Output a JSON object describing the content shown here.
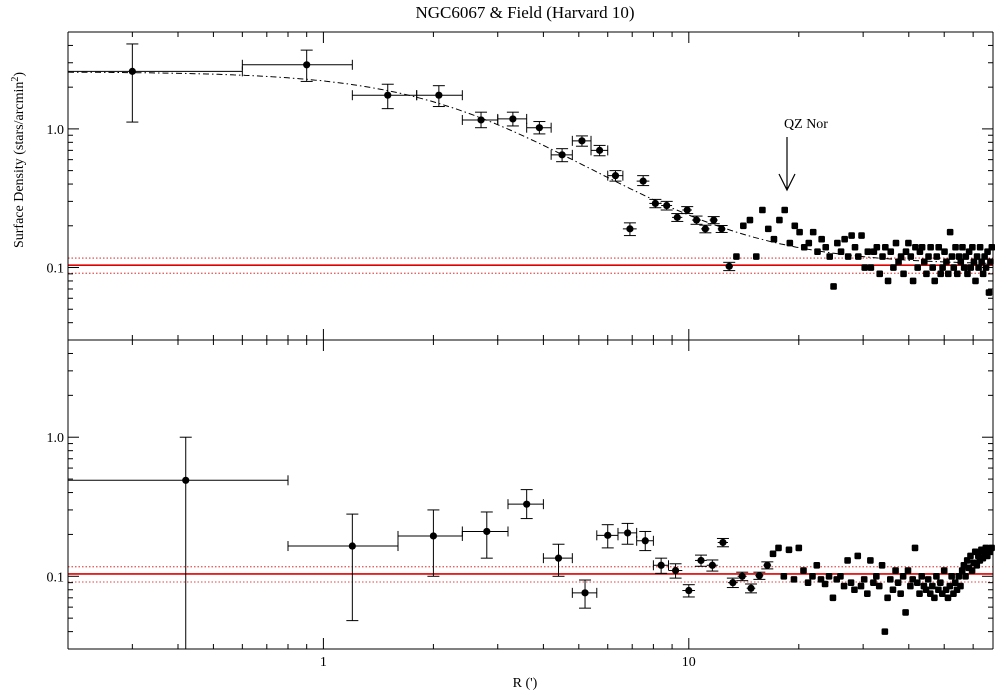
{
  "chart_data": [
    {
      "panel": "upper",
      "type": "scatter",
      "title": "NGC6067 & Field (Harvard 10)",
      "xlabel": "",
      "ylabel": "Surface Density (stars/arcmin",
      "ylabel_sup": "2",
      "ylabel_end": ")",
      "x_scale": "log",
      "y_scale": "log",
      "xlim": [
        0.2,
        68
      ],
      "ylim": [
        0.03,
        5
      ],
      "xticks": [
        {
          "v": 1,
          "label": "1"
        },
        {
          "v": 10,
          "label": "10"
        }
      ],
      "yticks": [
        {
          "v": 0.1,
          "label": "0.1"
        },
        {
          "v": 1.0,
          "label": "1.0"
        }
      ],
      "annotation": {
        "text": "QZ Nor",
        "x": 18,
        "y": 0.4
      },
      "colors": {
        "background_line": "#e00000",
        "points": "#000000"
      },
      "background": {
        "level": 0.104,
        "upper": 0.117,
        "lower": 0.091
      },
      "king_fit": {
        "f0": 2.48,
        "rc": 2.4,
        "fbg": 0.104,
        "style": "dash-dot"
      },
      "points": [
        {
          "x": 0.3,
          "y": 2.6,
          "xlo": 0.2,
          "xhi": 0.6,
          "ylo": 1.12,
          "yhi": 4.1
        },
        {
          "x": 0.9,
          "y": 2.9,
          "xlo": 0.6,
          "xhi": 1.2,
          "ylo": 2.2,
          "yhi": 3.7
        },
        {
          "x": 1.5,
          "y": 1.75,
          "xlo": 1.2,
          "xhi": 1.8,
          "ylo": 1.4,
          "yhi": 2.1
        },
        {
          "x": 2.07,
          "y": 1.75,
          "xlo": 1.8,
          "xhi": 2.4,
          "ylo": 1.45,
          "yhi": 2.05
        },
        {
          "x": 2.7,
          "y": 1.16,
          "xlo": 2.4,
          "xhi": 3.0,
          "ylo": 1.02,
          "yhi": 1.32
        },
        {
          "x": 3.3,
          "y": 1.18,
          "xlo": 3.0,
          "xhi": 3.6,
          "ylo": 1.05,
          "yhi": 1.32
        },
        {
          "x": 3.9,
          "y": 1.02,
          "xlo": 3.6,
          "xhi": 4.2,
          "ylo": 0.92,
          "yhi": 1.13
        },
        {
          "x": 4.5,
          "y": 0.65,
          "xlo": 4.2,
          "xhi": 4.8,
          "ylo": 0.58,
          "yhi": 0.72
        },
        {
          "x": 5.1,
          "y": 0.82,
          "xlo": 4.8,
          "xhi": 5.4,
          "ylo": 0.75,
          "yhi": 0.89
        },
        {
          "x": 5.7,
          "y": 0.7,
          "xlo": 5.4,
          "xhi": 6.0,
          "ylo": 0.64,
          "yhi": 0.76
        },
        {
          "x": 6.3,
          "y": 0.46,
          "xlo": 6.0,
          "xhi": 6.6,
          "ylo": 0.42,
          "yhi": 0.5
        },
        {
          "x": 6.9,
          "y": 0.19,
          "xlo": 6.6,
          "xhi": 7.2,
          "ylo": 0.17,
          "yhi": 0.21
        },
        {
          "x": 7.5,
          "y": 0.42,
          "xlo": 7.2,
          "xhi": 7.8,
          "ylo": 0.39,
          "yhi": 0.46
        },
        {
          "x": 8.1,
          "y": 0.29,
          "xlo": 7.8,
          "xhi": 8.4,
          "ylo": 0.27,
          "yhi": 0.31
        },
        {
          "x": 8.7,
          "y": 0.28,
          "xlo": 8.4,
          "xhi": 9.0,
          "ylo": 0.26,
          "yhi": 0.3
        },
        {
          "x": 9.3,
          "y": 0.23,
          "xlo": 9.0,
          "xhi": 9.6,
          "ylo": 0.215,
          "yhi": 0.245
        },
        {
          "x": 9.9,
          "y": 0.26,
          "xlo": 9.6,
          "xhi": 10.2,
          "ylo": 0.245,
          "yhi": 0.275
        },
        {
          "x": 10.5,
          "y": 0.22,
          "xlo": 10.2,
          "xhi": 10.8,
          "ylo": 0.205,
          "yhi": 0.235
        },
        {
          "x": 11.1,
          "y": 0.19,
          "xlo": 10.8,
          "xhi": 11.4,
          "ylo": 0.178,
          "yhi": 0.202
        },
        {
          "x": 11.7,
          "y": 0.22,
          "xlo": 11.4,
          "xhi": 12.0,
          "ylo": 0.207,
          "yhi": 0.233
        },
        {
          "x": 12.3,
          "y": 0.19,
          "xlo": 12.0,
          "xhi": 12.6,
          "ylo": 0.179,
          "yhi": 0.201
        },
        {
          "x": 12.9,
          "y": 0.102,
          "xlo": 12.6,
          "xhi": 13.2,
          "ylo": 0.095,
          "yhi": 0.109
        }
      ],
      "scatter_points": [
        {
          "x": 13.5,
          "y": 0.12
        },
        {
          "x": 14.1,
          "y": 0.2
        },
        {
          "x": 14.7,
          "y": 0.22
        },
        {
          "x": 15.3,
          "y": 0.12
        },
        {
          "x": 15.9,
          "y": 0.26
        },
        {
          "x": 16.5,
          "y": 0.19
        },
        {
          "x": 17.1,
          "y": 0.16
        },
        {
          "x": 17.7,
          "y": 0.22
        },
        {
          "x": 18.3,
          "y": 0.26
        },
        {
          "x": 18.9,
          "y": 0.15
        },
        {
          "x": 19.5,
          "y": 0.2
        },
        {
          "x": 20.1,
          "y": 0.18
        },
        {
          "x": 20.7,
          "y": 0.14
        },
        {
          "x": 21.3,
          "y": 0.15
        },
        {
          "x": 21.9,
          "y": 0.18
        },
        {
          "x": 22.5,
          "y": 0.13
        },
        {
          "x": 23.1,
          "y": 0.16
        },
        {
          "x": 23.7,
          "y": 0.14
        },
        {
          "x": 24.3,
          "y": 0.12
        },
        {
          "x": 24.9,
          "y": 0.073
        },
        {
          "x": 25.5,
          "y": 0.15
        },
        {
          "x": 26.1,
          "y": 0.13
        },
        {
          "x": 26.7,
          "y": 0.16
        },
        {
          "x": 27.3,
          "y": 0.12
        },
        {
          "x": 27.9,
          "y": 0.17
        },
        {
          "x": 28.5,
          "y": 0.14
        },
        {
          "x": 29.1,
          "y": 0.12
        },
        {
          "x": 29.7,
          "y": 0.17
        },
        {
          "x": 30.3,
          "y": 0.1
        },
        {
          "x": 30.9,
          "y": 0.13
        },
        {
          "x": 31.5,
          "y": 0.1
        },
        {
          "x": 32.1,
          "y": 0.13
        },
        {
          "x": 32.7,
          "y": 0.14
        },
        {
          "x": 33.3,
          "y": 0.09
        },
        {
          "x": 33.9,
          "y": 0.12
        },
        {
          "x": 34.5,
          "y": 0.14
        },
        {
          "x": 35.1,
          "y": 0.08
        },
        {
          "x": 35.7,
          "y": 0.13
        },
        {
          "x": 36.3,
          "y": 0.1
        },
        {
          "x": 36.9,
          "y": 0.15
        },
        {
          "x": 37.5,
          "y": 0.11
        },
        {
          "x": 38.1,
          "y": 0.12
        },
        {
          "x": 38.7,
          "y": 0.09
        },
        {
          "x": 39.3,
          "y": 0.13
        },
        {
          "x": 39.9,
          "y": 0.15
        },
        {
          "x": 40.5,
          "y": 0.12
        },
        {
          "x": 41.1,
          "y": 0.08
        },
        {
          "x": 41.7,
          "y": 0.14
        },
        {
          "x": 42.3,
          "y": 0.1
        },
        {
          "x": 42.9,
          "y": 0.13
        },
        {
          "x": 43.5,
          "y": 0.14
        },
        {
          "x": 44.1,
          "y": 0.11
        },
        {
          "x": 44.7,
          "y": 0.09
        },
        {
          "x": 45.3,
          "y": 0.12
        },
        {
          "x": 45.9,
          "y": 0.14
        },
        {
          "x": 46.5,
          "y": 0.1
        },
        {
          "x": 47.1,
          "y": 0.08
        },
        {
          "x": 47.7,
          "y": 0.12
        },
        {
          "x": 48.3,
          "y": 0.14
        },
        {
          "x": 48.9,
          "y": 0.09
        },
        {
          "x": 49.5,
          "y": 0.1
        },
        {
          "x": 50.1,
          "y": 0.13
        },
        {
          "x": 50.7,
          "y": 0.11
        },
        {
          "x": 51.3,
          "y": 0.09
        },
        {
          "x": 51.9,
          "y": 0.18
        },
        {
          "x": 52.5,
          "y": 0.12
        },
        {
          "x": 53.1,
          "y": 0.1
        },
        {
          "x": 53.7,
          "y": 0.14
        },
        {
          "x": 54.3,
          "y": 0.09
        },
        {
          "x": 54.9,
          "y": 0.12
        },
        {
          "x": 55.5,
          "y": 0.11
        },
        {
          "x": 56.1,
          "y": 0.14
        },
        {
          "x": 56.7,
          "y": 0.1
        },
        {
          "x": 57.3,
          "y": 0.12
        },
        {
          "x": 57.9,
          "y": 0.09
        },
        {
          "x": 58.5,
          "y": 0.13
        },
        {
          "x": 59.1,
          "y": 0.1
        },
        {
          "x": 59.7,
          "y": 0.14
        },
        {
          "x": 60.3,
          "y": 0.11
        },
        {
          "x": 60.9,
          "y": 0.08
        },
        {
          "x": 61.5,
          "y": 0.12
        },
        {
          "x": 62.1,
          "y": 0.1
        },
        {
          "x": 62.7,
          "y": 0.14
        },
        {
          "x": 63.3,
          "y": 0.11
        },
        {
          "x": 63.9,
          "y": 0.09
        },
        {
          "x": 64.5,
          "y": 0.12
        },
        {
          "x": 65.1,
          "y": 0.1
        },
        {
          "x": 65.7,
          "y": 0.13
        },
        {
          "x": 66.3,
          "y": 0.066
        },
        {
          "x": 66.9,
          "y": 0.11
        },
        {
          "x": 67.5,
          "y": 0.14
        }
      ]
    },
    {
      "panel": "lower",
      "type": "scatter",
      "title": "",
      "xlabel": "R (')",
      "ylabel": "",
      "x_scale": "log",
      "y_scale": "log",
      "xlim": [
        0.2,
        68
      ],
      "ylim": [
        0.03,
        5
      ],
      "xticks": [
        {
          "v": 1,
          "label": "1"
        },
        {
          "v": 10,
          "label": "10"
        }
      ],
      "yticks": [
        {
          "v": 0.1,
          "label": "0.1"
        },
        {
          "v": 1.0,
          "label": "1.0"
        }
      ],
      "colors": {
        "background_line": "#e00000",
        "points": "#000000"
      },
      "background": {
        "level": 0.104,
        "upper": 0.117,
        "lower": 0.091
      },
      "points": [
        {
          "x": 0.42,
          "y": 0.49,
          "xlo": 0.2,
          "xhi": 0.8,
          "ylo": 0.03,
          "yhi": 1.0
        },
        {
          "x": 1.2,
          "y": 0.165,
          "xlo": 0.8,
          "xhi": 1.6,
          "ylo": 0.048,
          "yhi": 0.28
        },
        {
          "x": 2.0,
          "y": 0.195,
          "xlo": 1.6,
          "xhi": 2.4,
          "ylo": 0.1,
          "yhi": 0.3
        },
        {
          "x": 2.8,
          "y": 0.21,
          "xlo": 2.4,
          "xhi": 3.2,
          "ylo": 0.135,
          "yhi": 0.29
        },
        {
          "x": 3.6,
          "y": 0.33,
          "xlo": 3.2,
          "xhi": 4.0,
          "ylo": 0.26,
          "yhi": 0.42
        },
        {
          "x": 4.4,
          "y": 0.135,
          "xlo": 4.0,
          "xhi": 4.8,
          "ylo": 0.1,
          "yhi": 0.17
        },
        {
          "x": 5.2,
          "y": 0.076,
          "xlo": 4.8,
          "xhi": 5.6,
          "ylo": 0.059,
          "yhi": 0.094
        },
        {
          "x": 6.0,
          "y": 0.197,
          "xlo": 5.6,
          "xhi": 6.4,
          "ylo": 0.16,
          "yhi": 0.235
        },
        {
          "x": 6.8,
          "y": 0.205,
          "xlo": 6.4,
          "xhi": 7.2,
          "ylo": 0.17,
          "yhi": 0.24
        },
        {
          "x": 7.6,
          "y": 0.18,
          "xlo": 7.2,
          "xhi": 8.0,
          "ylo": 0.153,
          "yhi": 0.21
        },
        {
          "x": 8.4,
          "y": 0.12,
          "xlo": 8.0,
          "xhi": 8.8,
          "ylo": 0.105,
          "yhi": 0.135
        },
        {
          "x": 9.2,
          "y": 0.11,
          "xlo": 8.8,
          "xhi": 9.6,
          "ylo": 0.097,
          "yhi": 0.123
        },
        {
          "x": 10.0,
          "y": 0.079,
          "xlo": 9.6,
          "xhi": 10.4,
          "ylo": 0.071,
          "yhi": 0.087
        },
        {
          "x": 10.8,
          "y": 0.13,
          "xlo": 10.4,
          "xhi": 11.2,
          "ylo": 0.118,
          "yhi": 0.142
        },
        {
          "x": 11.6,
          "y": 0.12,
          "xlo": 11.2,
          "xhi": 12.0,
          "ylo": 0.109,
          "yhi": 0.131
        },
        {
          "x": 12.4,
          "y": 0.175,
          "xlo": 12.0,
          "xhi": 12.8,
          "ylo": 0.163,
          "yhi": 0.187
        },
        {
          "x": 13.2,
          "y": 0.09,
          "xlo": 12.8,
          "xhi": 13.6,
          "ylo": 0.083,
          "yhi": 0.097
        },
        {
          "x": 14.0,
          "y": 0.1,
          "xlo": 13.6,
          "xhi": 14.4,
          "ylo": 0.093,
          "yhi": 0.107
        },
        {
          "x": 14.8,
          "y": 0.082,
          "xlo": 14.4,
          "xhi": 15.2,
          "ylo": 0.076,
          "yhi": 0.088
        },
        {
          "x": 15.6,
          "y": 0.101,
          "xlo": 15.2,
          "xhi": 16.0,
          "ylo": 0.095,
          "yhi": 0.107
        },
        {
          "x": 16.4,
          "y": 0.12,
          "xlo": 16.0,
          "xhi": 16.8,
          "ylo": 0.113,
          "yhi": 0.127
        }
      ],
      "scatter_points": [
        {
          "x": 17.0,
          "y": 0.145
        },
        {
          "x": 17.6,
          "y": 0.16
        },
        {
          "x": 18.2,
          "y": 0.1
        },
        {
          "x": 18.8,
          "y": 0.155
        },
        {
          "x": 19.4,
          "y": 0.095
        },
        {
          "x": 20.0,
          "y": 0.16
        },
        {
          "x": 20.6,
          "y": 0.11
        },
        {
          "x": 21.2,
          "y": 0.09
        },
        {
          "x": 21.8,
          "y": 0.1
        },
        {
          "x": 22.4,
          "y": 0.12
        },
        {
          "x": 23.0,
          "y": 0.095
        },
        {
          "x": 23.6,
          "y": 0.088
        },
        {
          "x": 24.2,
          "y": 0.1
        },
        {
          "x": 24.8,
          "y": 0.07
        },
        {
          "x": 25.4,
          "y": 0.095
        },
        {
          "x": 26.0,
          "y": 0.1
        },
        {
          "x": 26.6,
          "y": 0.085
        },
        {
          "x": 27.2,
          "y": 0.13
        },
        {
          "x": 27.8,
          "y": 0.09
        },
        {
          "x": 28.4,
          "y": 0.08
        },
        {
          "x": 29.0,
          "y": 0.14
        },
        {
          "x": 29.6,
          "y": 0.085
        },
        {
          "x": 30.2,
          "y": 0.095
        },
        {
          "x": 30.8,
          "y": 0.075
        },
        {
          "x": 31.4,
          "y": 0.13
        },
        {
          "x": 32.0,
          "y": 0.09
        },
        {
          "x": 32.6,
          "y": 0.1
        },
        {
          "x": 33.2,
          "y": 0.085
        },
        {
          "x": 33.8,
          "y": 0.12
        },
        {
          "x": 34.4,
          "y": 0.04
        },
        {
          "x": 35.0,
          "y": 0.07
        },
        {
          "x": 35.6,
          "y": 0.095
        },
        {
          "x": 36.2,
          "y": 0.08
        },
        {
          "x": 36.8,
          "y": 0.11
        },
        {
          "x": 37.4,
          "y": 0.09
        },
        {
          "x": 38.0,
          "y": 0.075
        },
        {
          "x": 38.6,
          "y": 0.1
        },
        {
          "x": 39.2,
          "y": 0.055
        },
        {
          "x": 39.8,
          "y": 0.11
        },
        {
          "x": 40.4,
          "y": 0.085
        },
        {
          "x": 41.0,
          "y": 0.095
        },
        {
          "x": 41.6,
          "y": 0.16
        },
        {
          "x": 42.2,
          "y": 0.09
        },
        {
          "x": 42.8,
          "y": 0.075
        },
        {
          "x": 43.4,
          "y": 0.1
        },
        {
          "x": 44.0,
          "y": 0.085
        },
        {
          "x": 44.6,
          "y": 0.08
        },
        {
          "x": 45.2,
          "y": 0.095
        },
        {
          "x": 45.8,
          "y": 0.075
        },
        {
          "x": 46.4,
          "y": 0.085
        },
        {
          "x": 47.0,
          "y": 0.07
        },
        {
          "x": 47.6,
          "y": 0.1
        },
        {
          "x": 48.2,
          "y": 0.08
        },
        {
          "x": 48.8,
          "y": 0.09
        },
        {
          "x": 49.4,
          "y": 0.075
        },
        {
          "x": 50.0,
          "y": 0.11
        },
        {
          "x": 50.6,
          "y": 0.08
        },
        {
          "x": 51.2,
          "y": 0.07
        },
        {
          "x": 51.8,
          "y": 0.085
        },
        {
          "x": 52.4,
          "y": 0.1
        },
        {
          "x": 53.0,
          "y": 0.075
        },
        {
          "x": 53.6,
          "y": 0.09
        },
        {
          "x": 54.2,
          "y": 0.08
        },
        {
          "x": 54.8,
          "y": 0.1
        },
        {
          "x": 55.4,
          "y": 0.085
        },
        {
          "x": 56.0,
          "y": 0.11
        },
        {
          "x": 56.6,
          "y": 0.12
        },
        {
          "x": 57.2,
          "y": 0.1
        },
        {
          "x": 57.8,
          "y": 0.13
        },
        {
          "x": 58.4,
          "y": 0.115
        },
        {
          "x": 59.0,
          "y": 0.14
        },
        {
          "x": 59.6,
          "y": 0.11
        },
        {
          "x": 60.2,
          "y": 0.125
        },
        {
          "x": 60.8,
          "y": 0.15
        },
        {
          "x": 61.4,
          "y": 0.12
        },
        {
          "x": 62.0,
          "y": 0.14
        },
        {
          "x": 62.6,
          "y": 0.13
        },
        {
          "x": 63.2,
          "y": 0.155
        },
        {
          "x": 63.8,
          "y": 0.135
        },
        {
          "x": 64.4,
          "y": 0.15
        },
        {
          "x": 65.0,
          "y": 0.16
        },
        {
          "x": 65.6,
          "y": 0.14
        },
        {
          "x": 66.2,
          "y": 0.155
        },
        {
          "x": 66.8,
          "y": 0.15
        },
        {
          "x": 67.4,
          "y": 0.16
        }
      ]
    }
  ]
}
